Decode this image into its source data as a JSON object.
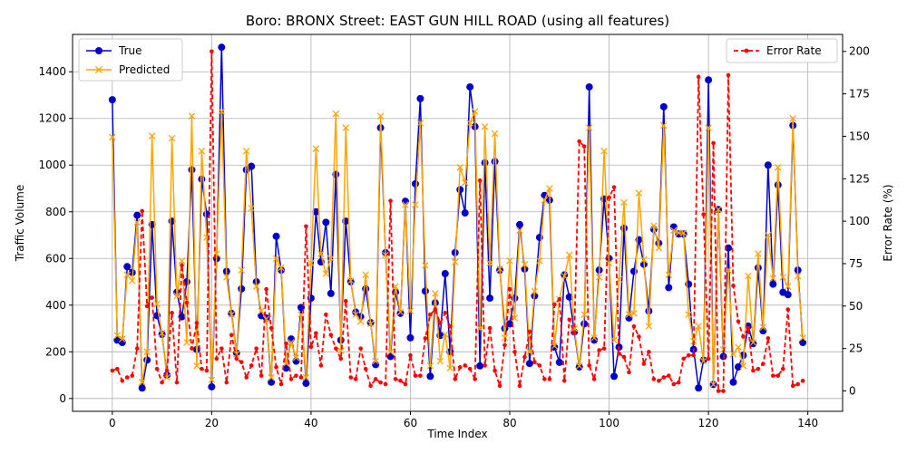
{
  "chart_data": {
    "type": "line",
    "title": "Boro: BRONX Street: EAST GUN HILL ROAD (using all features)",
    "xlabel": "Time Index",
    "ylabel_left": "Traffic Volume",
    "ylabel_right": "Error Rate (%)",
    "xlim": [
      -8,
      147
    ],
    "ylim_left": [
      -55,
      1560
    ],
    "ylim_right": [
      -12,
      210
    ],
    "x_ticks": [
      0,
      20,
      40,
      60,
      80,
      100,
      120,
      140
    ],
    "y_ticks_left": [
      0,
      200,
      400,
      600,
      800,
      1000,
      1200,
      1400
    ],
    "y_ticks_right": [
      0,
      25,
      50,
      75,
      100,
      125,
      150,
      175,
      200
    ],
    "grid": true,
    "legend_left_position": "top-left",
    "legend_right_position": "top-right",
    "colors": {
      "true": "#0000cc",
      "predicted": "#ffa500",
      "error": "#ff0000"
    },
    "series": [
      {
        "name": "True",
        "axis": "left",
        "values": [
          1280,
          250,
          240,
          565,
          540,
          785,
          45,
          165,
          745,
          355,
          275,
          100,
          760,
          455,
          350,
          500,
          980,
          210,
          940,
          790,
          50,
          600,
          1505,
          545,
          365,
          195,
          470,
          980,
          995,
          500,
          355,
          345,
          70,
          695,
          550,
          130,
          255,
          160,
          390,
          65,
          430,
          800,
          585,
          755,
          450,
          960,
          250,
          760,
          500,
          370,
          350,
          470,
          325,
          145,
          1160,
          625,
          180,
          455,
          365,
          845,
          260,
          920,
          1285,
          460,
          95,
          410,
          270,
          535,
          200,
          625,
          895,
          795,
          1335,
          1165,
          140,
          1010,
          430,
          1015,
          550,
          300,
          320,
          430,
          745,
          555,
          150,
          440,
          690,
          870,
          850,
          220,
          155,
          530,
          435,
          285,
          135,
          320,
          1335,
          250,
          550,
          855,
          600,
          95,
          220,
          730,
          345,
          545,
          680,
          575,
          375,
          725,
          665,
          1250,
          475,
          735,
          705,
          705,
          490,
          210,
          45,
          165,
          1365,
          60,
          810,
          180,
          645,
          70,
          135,
          185,
          310,
          235,
          560,
          290,
          1000,
          490,
          915,
          455,
          445,
          1170,
          550,
          240
        ]
      },
      {
        "name": "Predicted",
        "axis": "left",
        "values": [
          1120,
          270,
          255,
          530,
          505,
          755,
          70,
          200,
          1125,
          405,
          280,
          90,
          1115,
          440,
          590,
          240,
          1210,
          140,
          1060,
          690,
          80,
          620,
          1230,
          520,
          360,
          190,
          550,
          1060,
          815,
          480,
          375,
          340,
          90,
          600,
          560,
          150,
          240,
          175,
          360,
          90,
          580,
          1070,
          620,
          535,
          600,
          1220,
          205,
          1160,
          505,
          360,
          330,
          530,
          320,
          160,
          1210,
          615,
          200,
          480,
          370,
          830,
          375,
          830,
          1180,
          570,
          140,
          450,
          160,
          275,
          130,
          585,
          990,
          925,
          1180,
          1230,
          300,
          1165,
          580,
          1135,
          555,
          260,
          590,
          345,
          720,
          575,
          200,
          460,
          590,
          850,
          900,
          225,
          425,
          525,
          615,
          300,
          140,
          360,
          1160,
          260,
          520,
          1060,
          580,
          250,
          510,
          840,
          360,
          365,
          880,
          595,
          310,
          740,
          645,
          1170,
          530,
          720,
          710,
          710,
          360,
          245,
          310,
          160,
          1160,
          60,
          810,
          210,
          550,
          190,
          220,
          140,
          525,
          240,
          620,
          305,
          700,
          515,
          990,
          520,
          480,
          1200,
          525,
          260
        ]
      },
      {
        "name": "Error Rate",
        "axis": "right",
        "values": [
          12,
          13,
          6,
          8,
          9,
          25,
          106,
          50,
          55,
          13,
          5,
          12,
          46,
          5,
          74,
          52,
          25,
          40,
          13,
          12,
          200,
          19,
          25,
          5,
          33,
          19,
          17,
          8,
          15,
          25,
          9,
          60,
          37,
          14,
          4,
          28,
          7,
          9,
          8,
          97,
          26,
          34,
          15,
          45,
          33,
          25,
          19,
          53,
          8,
          7,
          25,
          13,
          3,
          7,
          5,
          4,
          112,
          7,
          6,
          4,
          21,
          9,
          9,
          31,
          45,
          48,
          40,
          46,
          38,
          7,
          14,
          15,
          13,
          7,
          124,
          15,
          37,
          12,
          3,
          27,
          60,
          23,
          3,
          20,
          35,
          17,
          15,
          7,
          7,
          51,
          54,
          6,
          42,
          34,
          147,
          144,
          15,
          7,
          24,
          25,
          114,
          120,
          22,
          20,
          11,
          38,
          32,
          16,
          23,
          7,
          6,
          8,
          9,
          4,
          5,
          19,
          21,
          21,
          185,
          104,
          19,
          146,
          0,
          0,
          186,
          62,
          41,
          32,
          37,
          12,
          13,
          16,
          31,
          9,
          9,
          13,
          48,
          3,
          4,
          6
        ]
      }
    ]
  }
}
